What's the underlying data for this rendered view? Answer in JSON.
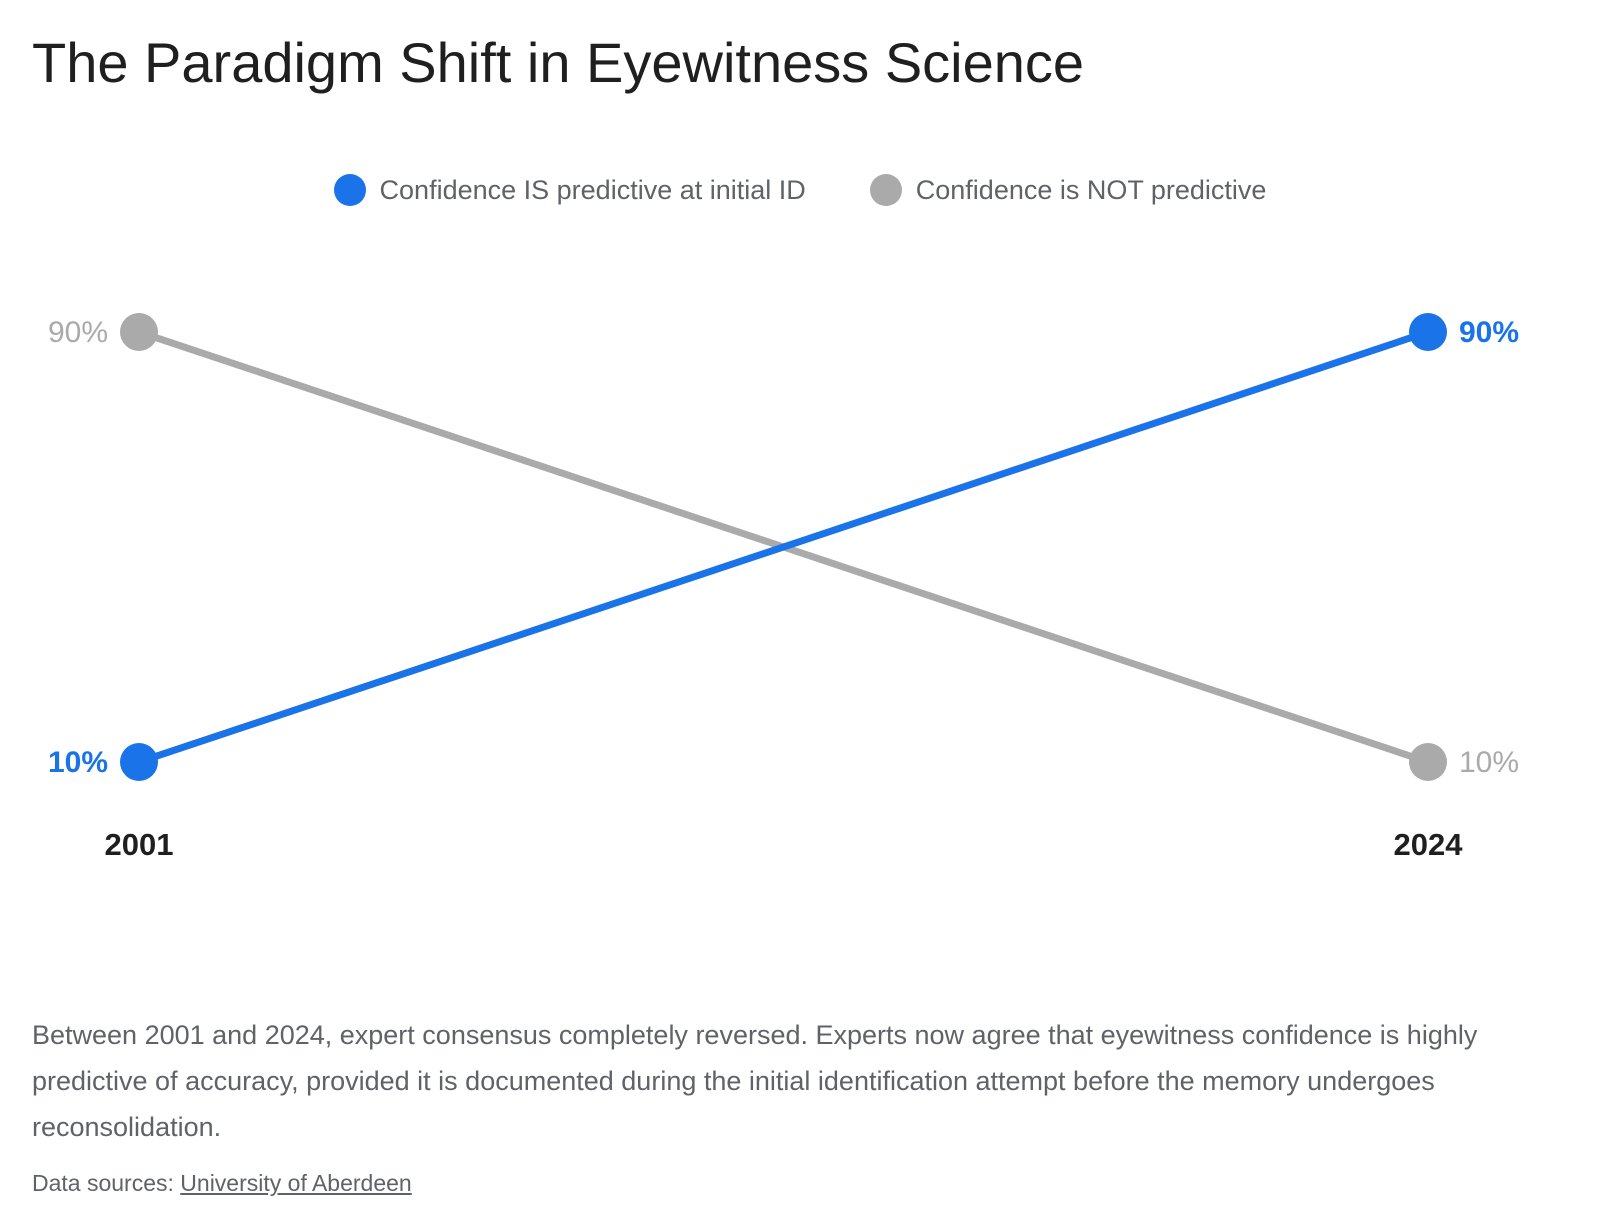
{
  "title": "The Paradigm Shift in Eyewitness Science",
  "description": "Between 2001 and 2024, expert consensus completely reversed. Experts now agree that eyewitness confidence is highly predictive of accuracy, provided it is documented during the initial identification attempt before the memory undergoes reconsolidation.",
  "source": {
    "prefix": "Data sources:",
    "link_text": "University of Aberdeen"
  },
  "chart_data": {
    "type": "line",
    "title": "The Paradigm Shift in Eyewitness Science",
    "xlabel": "",
    "ylabel": "",
    "categories": [
      "2001",
      "2024"
    ],
    "ylim": [
      10,
      90
    ],
    "grid": false,
    "legend_position": "top-center",
    "series": [
      {
        "name": "Confidence IS predictive at initial ID",
        "values": [
          10,
          90
        ],
        "labels": [
          "10%",
          "90%"
        ],
        "color": "#1a73e8"
      },
      {
        "name": "Confidence is NOT predictive",
        "values": [
          90,
          10
        ],
        "labels": [
          "90%",
          "10%"
        ],
        "color": "#aaaaaa"
      }
    ],
    "category_label_color": "#1f1f1f"
  }
}
